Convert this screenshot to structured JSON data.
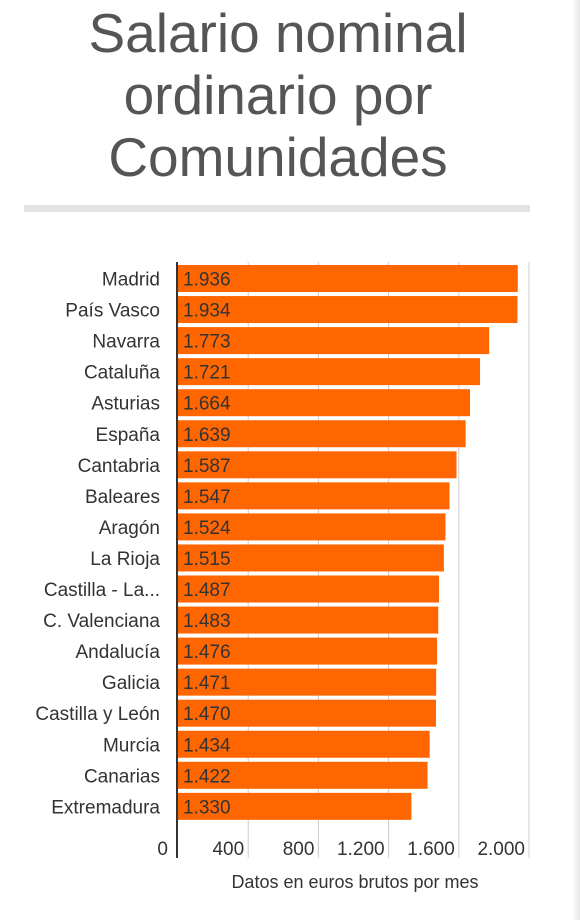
{
  "title_lines": [
    "Salario nominal",
    "ordinario por",
    "Comunidades"
  ],
  "colors": {
    "bar": "#ff6600",
    "title": "#555555",
    "text": "#333333",
    "grid": "#cccccc",
    "axis": "#333333",
    "divider": "#e3e3e3"
  },
  "chart_data": {
    "type": "bar",
    "orientation": "horizontal",
    "title": "Salario nominal ordinario por Comunidades",
    "xlabel": "Datos en euros brutos por mes",
    "ylabel": "",
    "categories": [
      "Madrid",
      "País Vasco",
      "Navarra",
      "Cataluña",
      "Asturias",
      "España",
      "Cantabria",
      "Baleares",
      "Aragón",
      "La Rioja",
      "Castilla - La...",
      "C. Valenciana",
      "Andalucía",
      "Galicia",
      "Castilla y León",
      "Murcia",
      "Canarias",
      "Extremadura"
    ],
    "values": [
      1936,
      1934,
      1773,
      1721,
      1664,
      1639,
      1587,
      1547,
      1524,
      1515,
      1487,
      1483,
      1476,
      1471,
      1470,
      1434,
      1422,
      1330
    ],
    "data_labels": [
      "1.936",
      "1.934",
      "1.773",
      "1.721",
      "1.664",
      "1.639",
      "1.587",
      "1.547",
      "1.524",
      "1.515",
      "1.487",
      "1.483",
      "1.476",
      "1.471",
      "1.470",
      "1.434",
      "1.422",
      "1.330"
    ],
    "xlim": [
      0,
      2000
    ],
    "xticks": [
      0,
      400,
      800,
      1200,
      1600,
      2000
    ],
    "xtick_labels": [
      "0",
      "400",
      "800",
      "1.200",
      "1.600",
      "2.000"
    ],
    "grid": true
  }
}
